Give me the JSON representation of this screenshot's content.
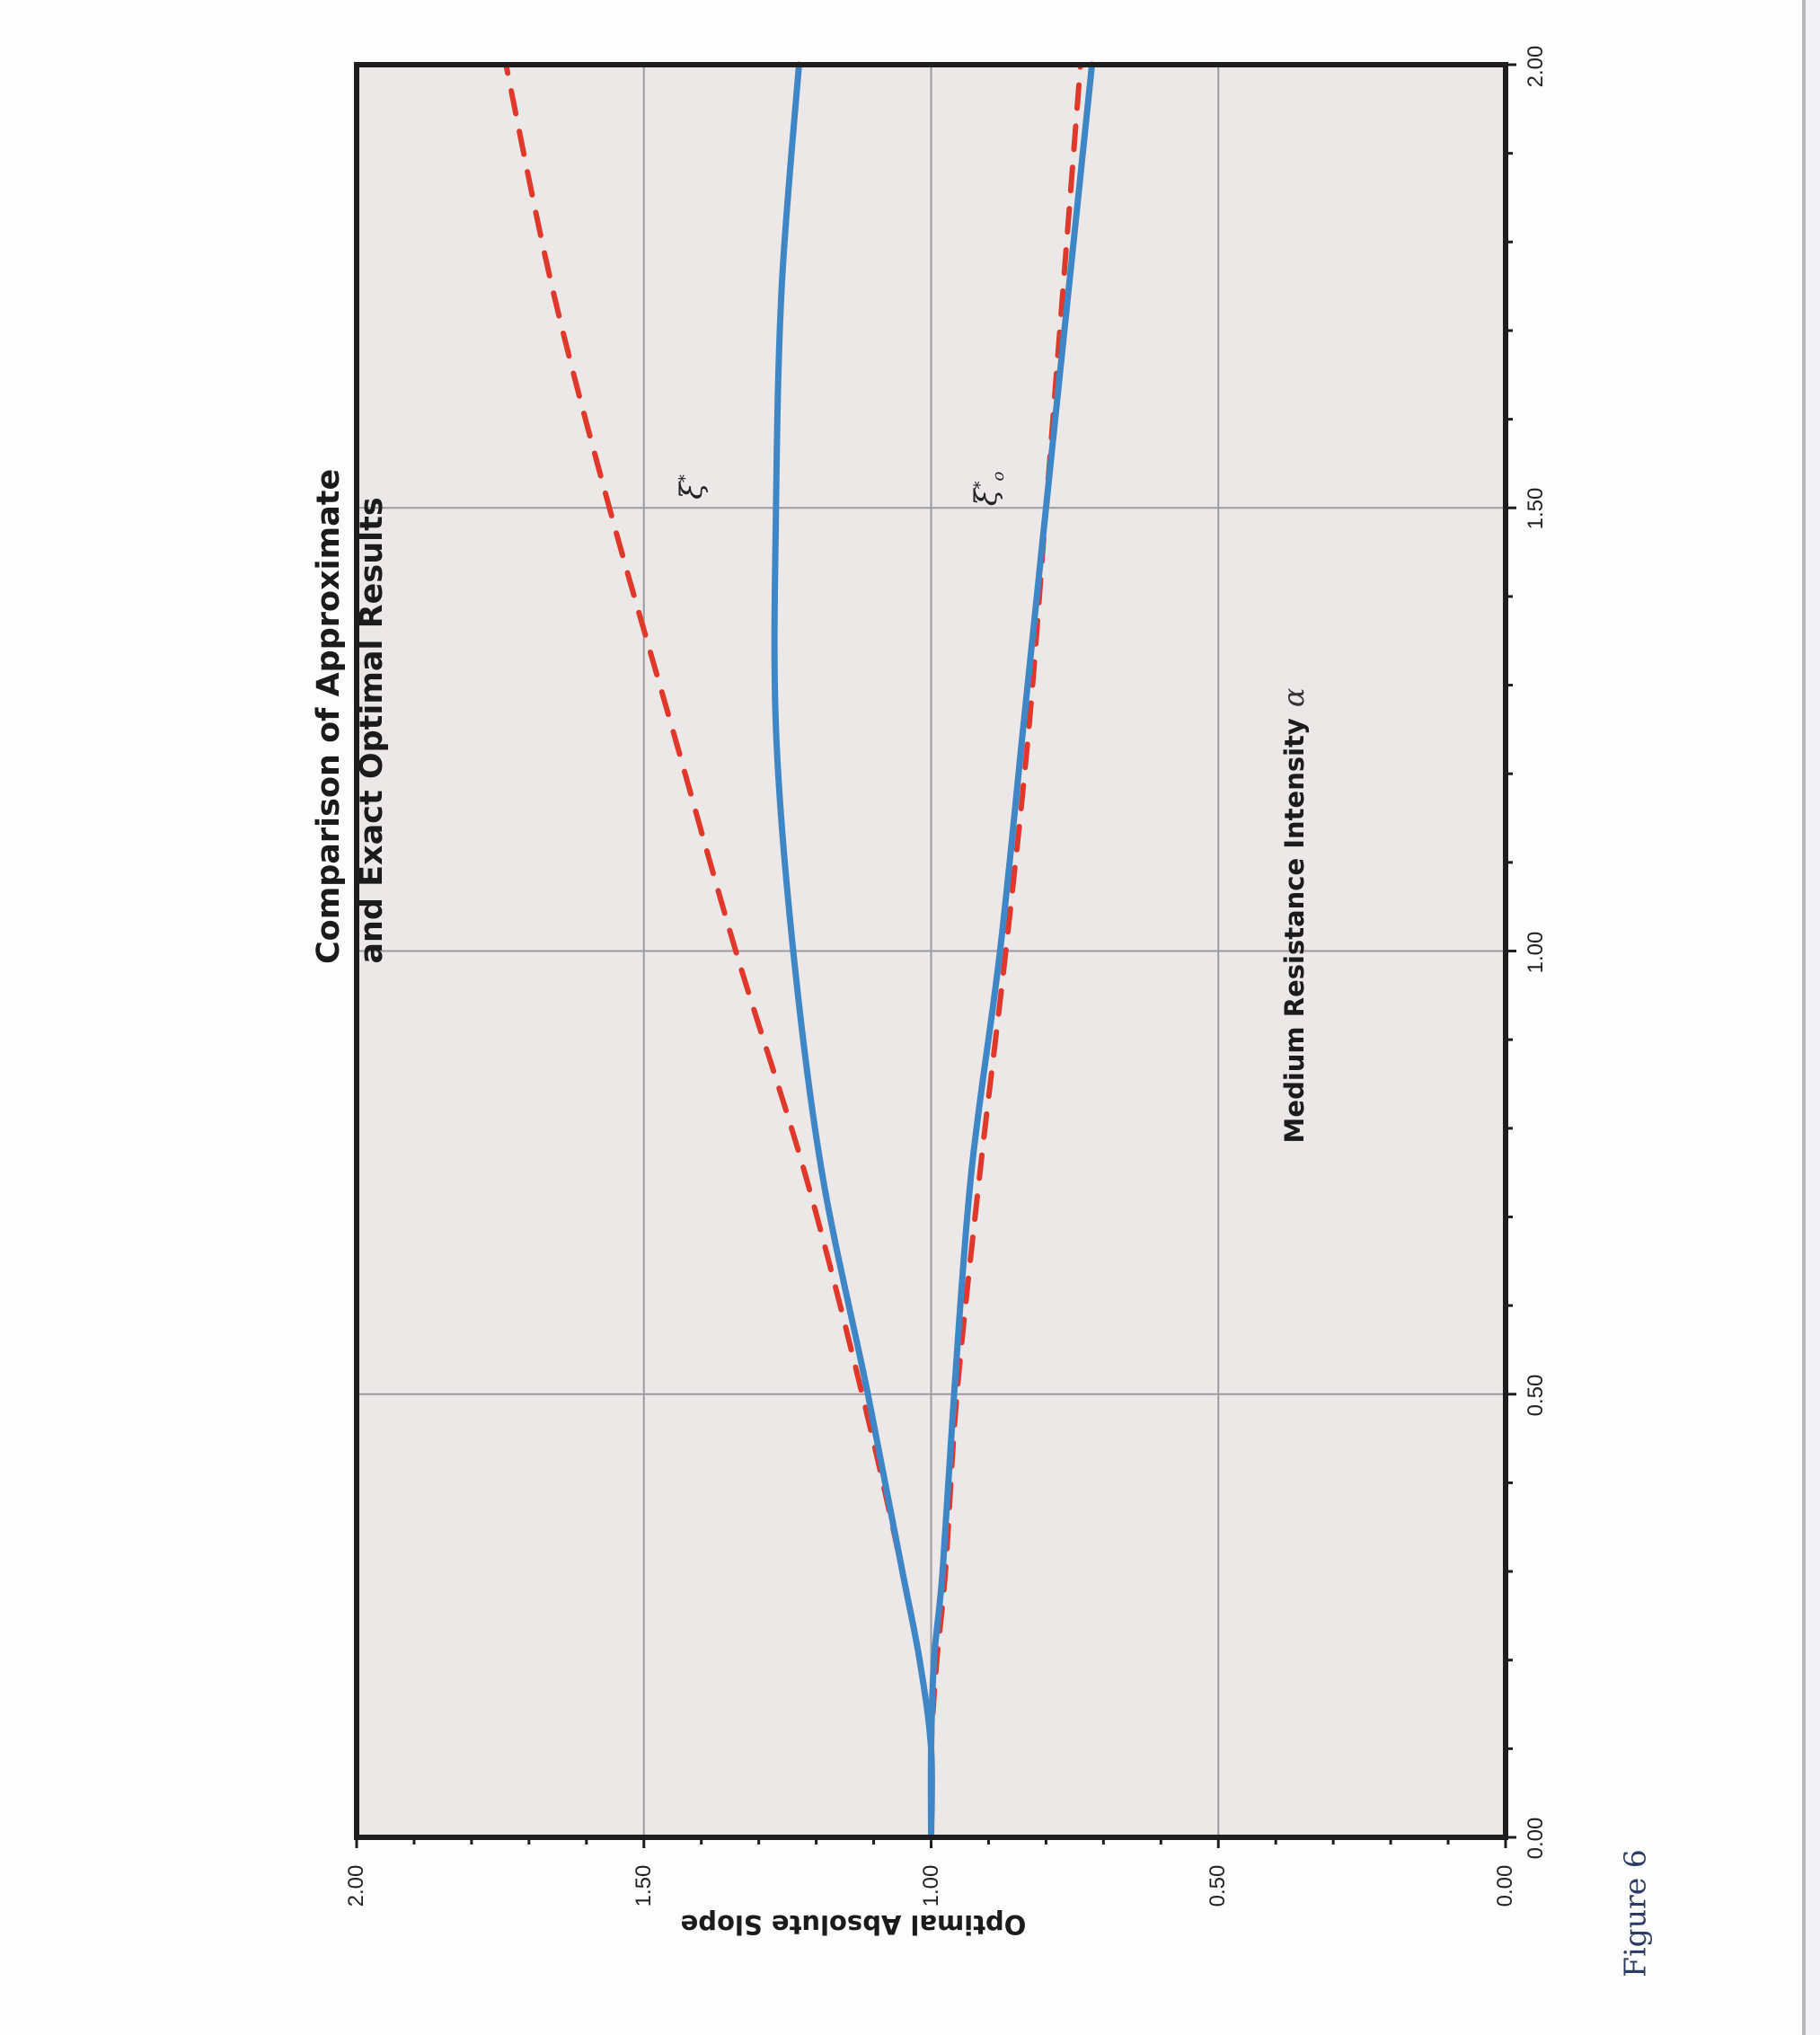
{
  "page": {
    "figure_caption": "Figure 6",
    "orientation": "rotated 90° (landscape chart on portrait page)"
  },
  "chart": {
    "title_line1": "Comparison of Approximate",
    "title_line2": "and Exact Optimal Results",
    "xlabel": "Medium Resistance Intensity",
    "xlabel_symbol": "α",
    "ylabel": "Optimal Absolute Slope",
    "x_ticks": [
      "0.00",
      "0.50",
      "1.00",
      "1.50",
      "2.00"
    ],
    "y_ticks": [
      "0.00",
      "0.50",
      "1.00",
      "1.50",
      "2.00"
    ],
    "annotations": {
      "upper": {
        "symbol": "ξ",
        "sup": "*",
        "accent": "~"
      },
      "lower": {
        "symbol": "ξ",
        "sup": "*",
        "sub": "o"
      }
    },
    "colors": {
      "exact": "#3f86c6",
      "approximate": "#e0392b",
      "plot_bg": "#ece8e8",
      "grid": "#9a9aa2",
      "frame": "#1e1e1e"
    }
  },
  "chart_data": {
    "type": "line",
    "title": "Comparison of Approximate and Exact Optimal Results",
    "xlabel": "Medium Resistance Intensity α",
    "ylabel": "Optimal Absolute Slope",
    "xlim": [
      0,
      2
    ],
    "ylim": [
      0,
      2
    ],
    "grid": true,
    "legend": "none (curves labeled inline: ξ̃* upper, ξo* lower)",
    "x": [
      0.0,
      0.1,
      0.2,
      0.3,
      0.5,
      0.75,
      1.0,
      1.25,
      1.5,
      1.75,
      2.0
    ],
    "series": [
      {
        "name": "ξ̃* exact (solid blue)",
        "style": "solid",
        "values": [
          1.0,
          1.0,
          1.02,
          1.05,
          1.11,
          1.19,
          1.24,
          1.27,
          1.27,
          1.26,
          1.23
        ]
      },
      {
        "name": "ξ̃* approximate (dashed red)",
        "style": "dashed",
        "values": [
          1.0,
          1.0,
          1.02,
          1.05,
          1.12,
          1.22,
          1.34,
          1.45,
          1.56,
          1.66,
          1.74
        ]
      },
      {
        "name": "ξo* exact (solid blue)",
        "style": "solid",
        "values": [
          1.0,
          1.0,
          0.995,
          0.98,
          0.96,
          0.93,
          0.88,
          0.84,
          0.8,
          0.76,
          0.72
        ]
      },
      {
        "name": "ξo* approximate (dashed red)",
        "style": "dashed",
        "values": [
          1.0,
          1.0,
          0.99,
          0.975,
          0.955,
          0.915,
          0.87,
          0.83,
          0.8,
          0.77,
          0.74
        ]
      }
    ],
    "annotations": [
      {
        "text": "ξ̃*",
        "x": 1.5,
        "y": 1.42
      },
      {
        "text": "ξo*",
        "x": 1.5,
        "y": 0.91
      }
    ],
    "figure_caption": "Figure 6"
  }
}
